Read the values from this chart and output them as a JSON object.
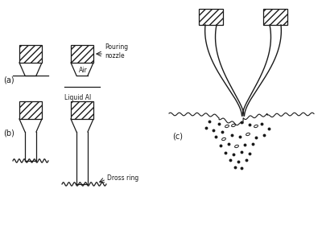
{
  "bg_color": "#ffffff",
  "line_color": "#1a1a1a",
  "panel_a_label": "(a)",
  "panel_b_label": "(b)",
  "panel_c_label": "(c)",
  "label_pouring_nozzle": "Pouring\nnozzle",
  "label_air": "Air",
  "label_liquid_al": "Liquid Al",
  "label_dross_ring": "Dross ring",
  "figsize": [
    4.0,
    3.06
  ],
  "dpi": 100
}
